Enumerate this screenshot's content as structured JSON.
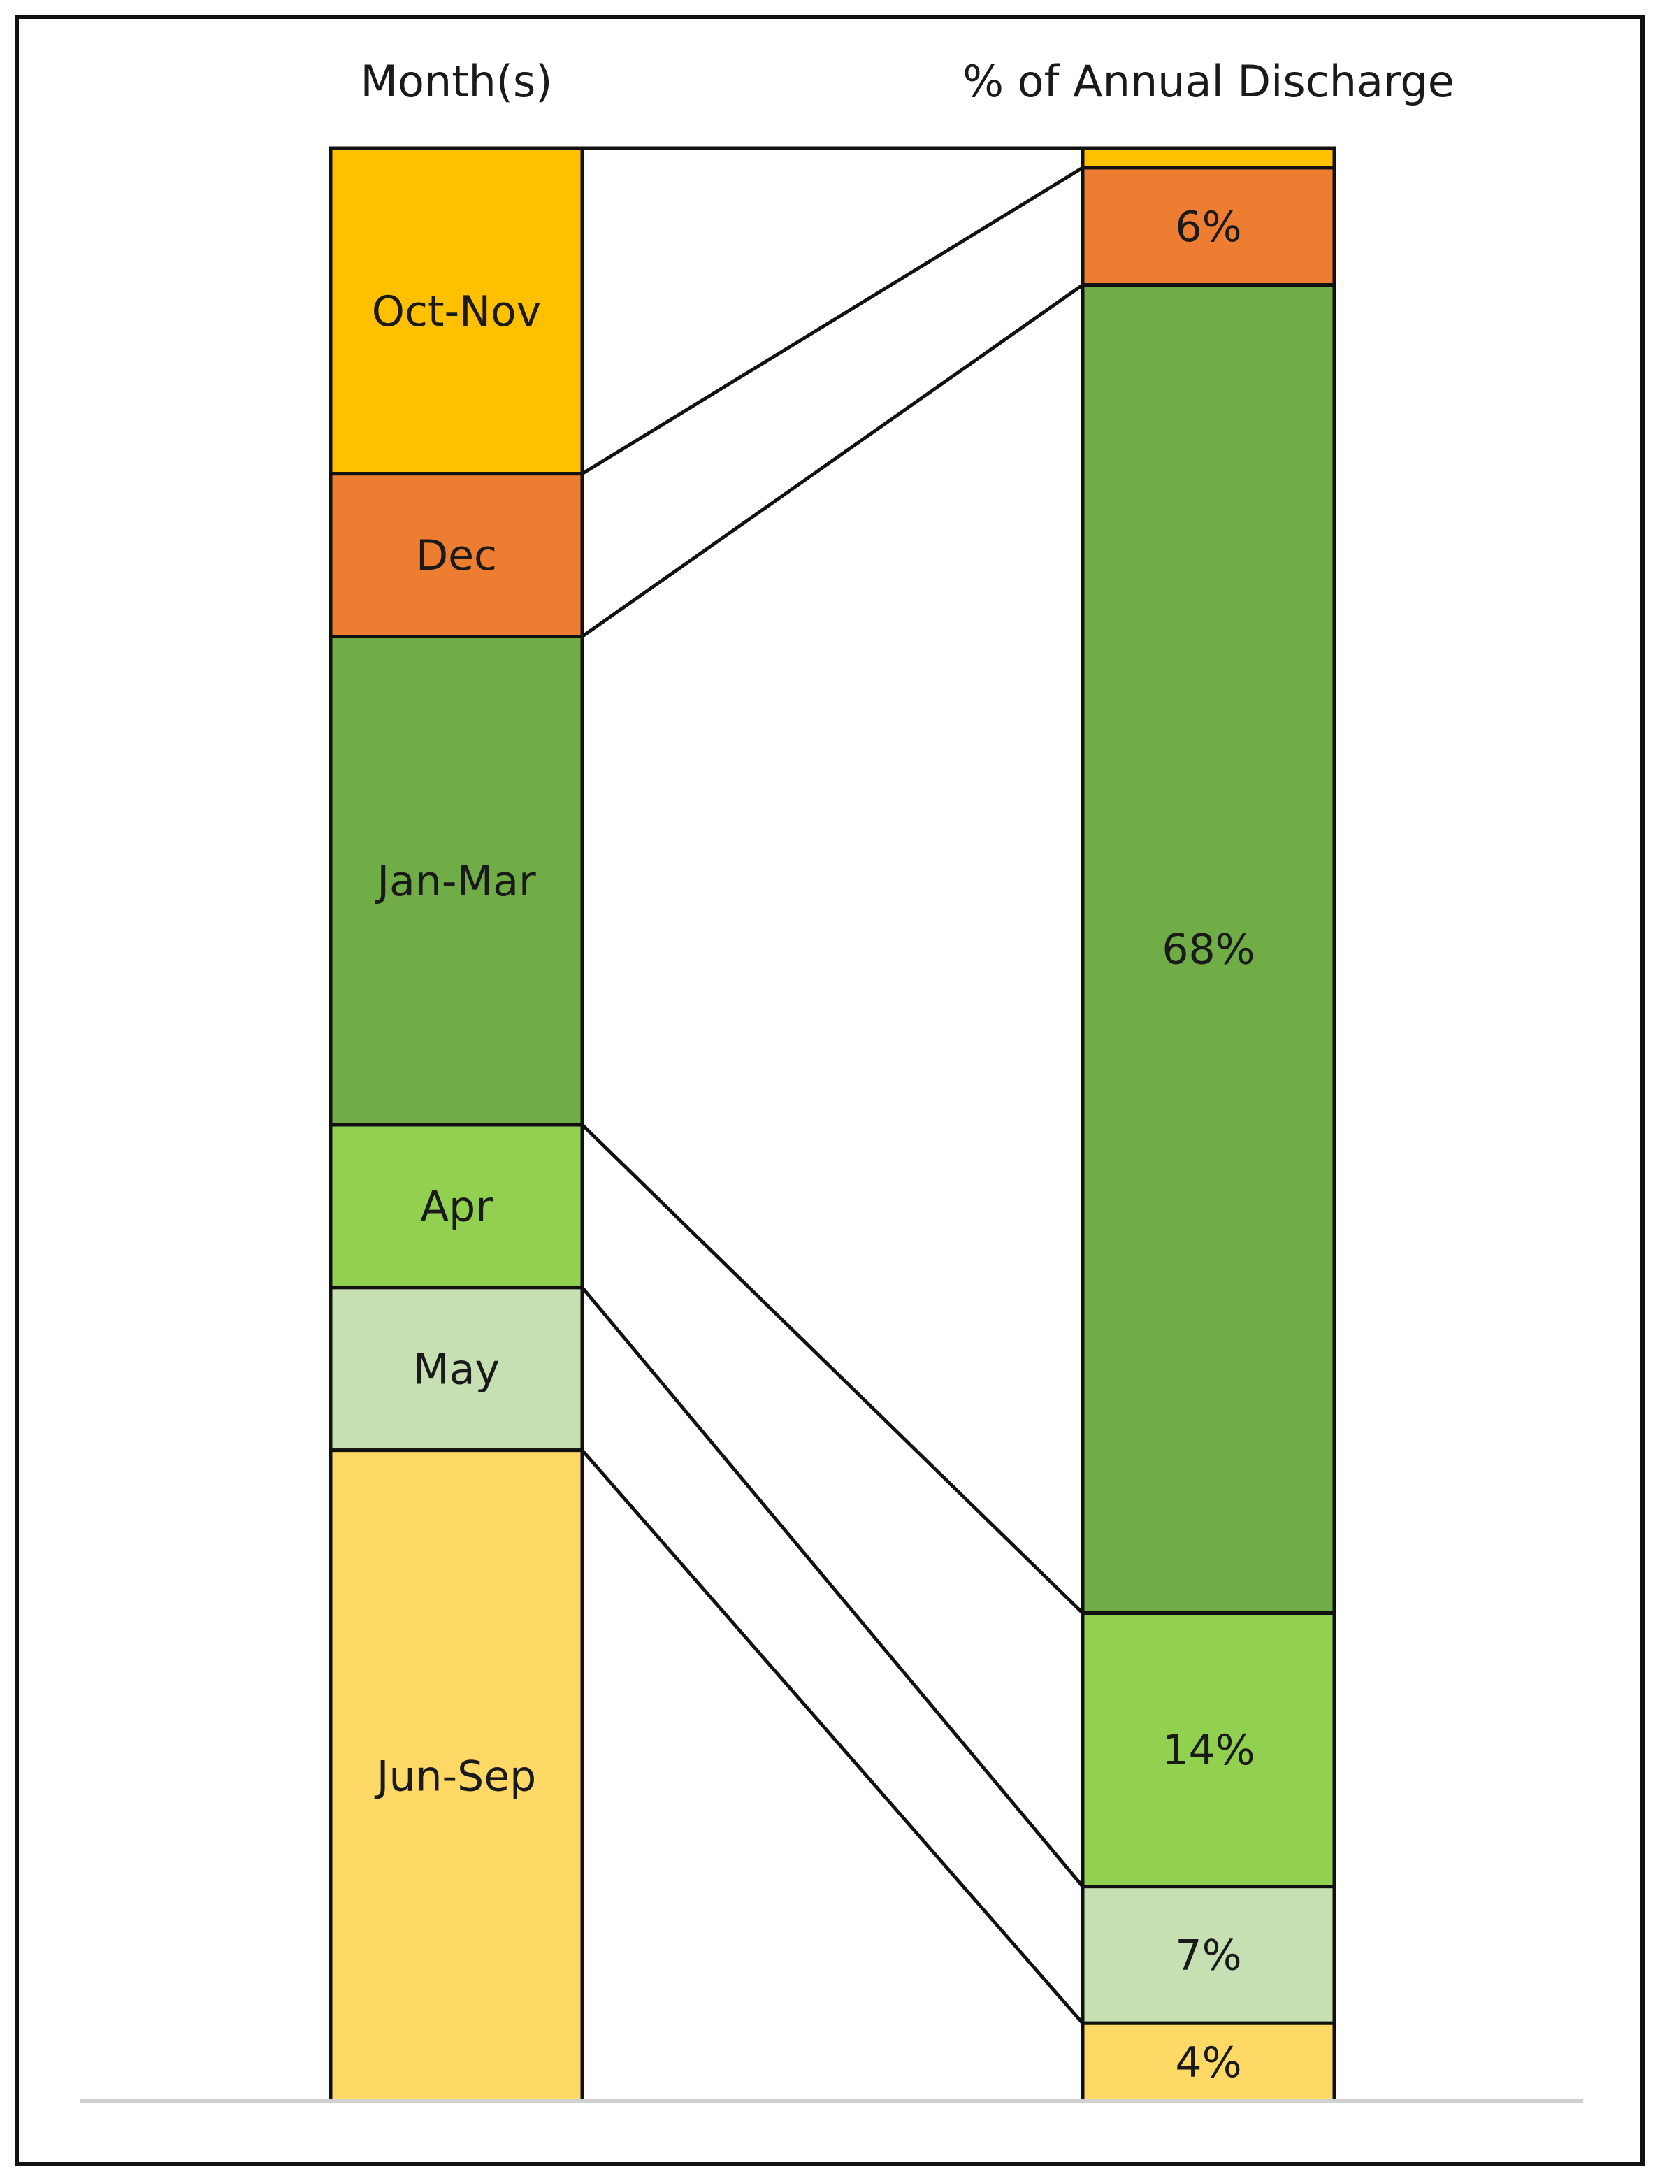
{
  "chart_data": {
    "type": "bar",
    "column_headers": {
      "left": "Month(s)",
      "right": "% of Annual Discharge"
    },
    "categories": [
      "Oct-Nov",
      "Dec",
      "Jan-Mar",
      "Apr",
      "May",
      "Jun-Sep"
    ],
    "values": [
      1,
      6,
      68,
      14,
      7,
      4
    ],
    "value_labels": [
      "",
      "6%",
      "68%",
      "14%",
      "7%",
      "4%"
    ],
    "months_per_category": [
      2,
      1,
      3,
      1,
      1,
      4
    ],
    "colors": [
      "#ffc000",
      "#ed7d31",
      "#70ad47",
      "#92d050",
      "#c6e0b4",
      "#ffd966"
    ],
    "unit": "%"
  }
}
